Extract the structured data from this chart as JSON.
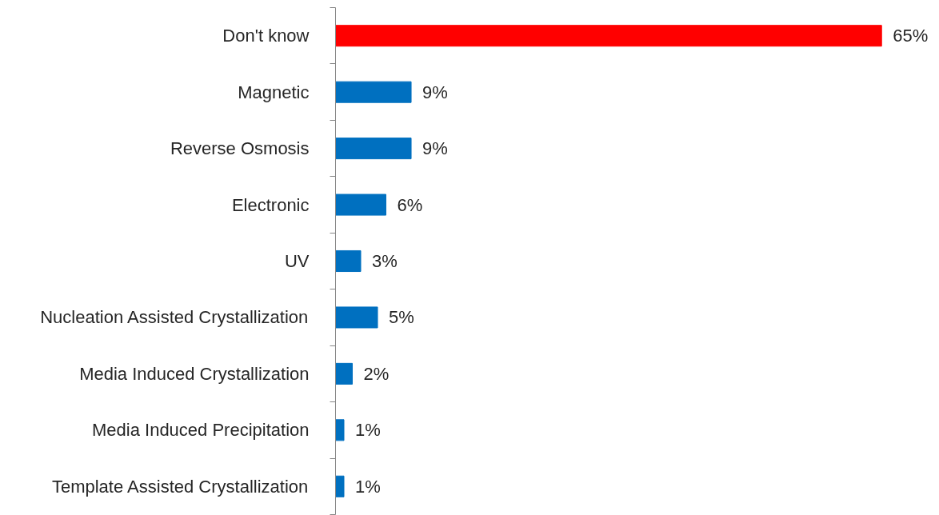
{
  "chart_data": {
    "type": "bar",
    "orientation": "horizontal",
    "categories": [
      "Don't know",
      "Magnetic",
      "Reverse Osmosis",
      "Electronic",
      "UV",
      "Nucleation Assisted Crystallization",
      "Media Induced Crystallization",
      "Media Induced Precipitation",
      "Template Assisted Crystallization"
    ],
    "values": [
      65,
      9,
      9,
      6,
      3,
      5,
      2,
      1,
      1
    ],
    "colors": [
      "#ff0000",
      "#0070c0",
      "#0070c0",
      "#0070c0",
      "#0070c0",
      "#0070c0",
      "#0070c0",
      "#0070c0",
      "#0070c0"
    ],
    "value_labels": [
      "65%",
      "9%",
      "9%",
      "6%",
      "3%",
      "5%",
      "2%",
      "1%",
      "1%"
    ],
    "tick_labels": "y"
  }
}
